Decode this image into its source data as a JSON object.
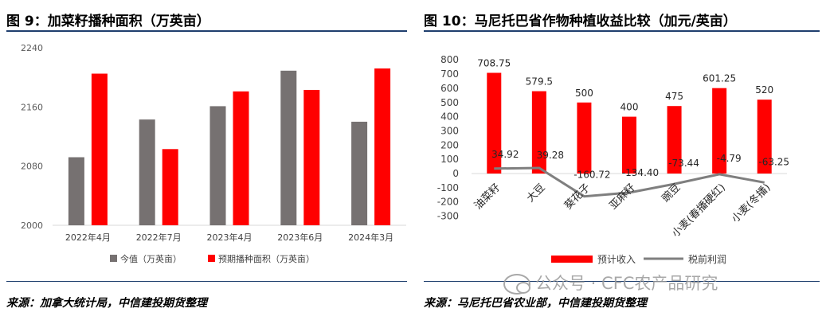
{
  "left_panel": {
    "title": "图 9：加菜籽播种面积（万英亩）",
    "source": "来源：加拿大统计局，中信建投期货整理"
  },
  "right_panel": {
    "title": "图 10：马尼托巴省作物种植收益比较（加元/英亩）",
    "source": "来源：马尼托巴省农业部，中信建投期货整理"
  },
  "watermark": {
    "text": "公众号 · CFC农产品研究"
  },
  "colors": {
    "grey": "#767171",
    "red": "#ff0000",
    "line": "#7f7f7f",
    "rule": "#1f3f6e"
  },
  "chart_data": [
    {
      "type": "bar",
      "categories": [
        "2022年4月",
        "2022年7月",
        "2023年4月",
        "2023年6月",
        "2024年3月"
      ],
      "series": [
        {
          "name": "今值（万英亩）",
          "values": [
            2092,
            2143,
            2161,
            2209,
            2140
          ]
        },
        {
          "name": "预期播种面积（万英亩）",
          "values": [
            2205,
            2103,
            2181,
            2183,
            2212
          ]
        }
      ],
      "yticks": [
        2000,
        2080,
        2160,
        2240
      ],
      "ylim": [
        2000,
        2240
      ],
      "grid": false,
      "legend": "bottom"
    },
    {
      "type": "bar",
      "categories": [
        "油菜籽",
        "大豆",
        "葵花子",
        "亚麻籽",
        "豌豆",
        "小麦(春播硬红)",
        "小麦(冬播)"
      ],
      "series": [
        {
          "name": "预计收入",
          "type": "bar",
          "values": [
            708.75,
            579.5,
            500,
            400,
            475,
            601.25,
            520
          ]
        },
        {
          "name": "税前利润",
          "type": "line",
          "values": [
            34.92,
            39.28,
            -160.72,
            -134.4,
            -73.44,
            -4.79,
            -63.25
          ]
        }
      ],
      "bar_labels": [
        "708.75",
        "579.5",
        "500",
        "400",
        "475",
        "601.25",
        "520"
      ],
      "line_labels": [
        "34.92",
        "39.28",
        "-160.72",
        "-134.40",
        "-73.44",
        "-4.79",
        "-63.25"
      ],
      "yticks": [
        -300,
        -200,
        -100,
        0,
        100,
        200,
        300,
        400,
        500,
        600,
        700,
        800
      ],
      "ytick_labels": [
        "-300",
        "-200",
        "-100",
        "0",
        "100",
        "200",
        "300",
        "400",
        "500",
        "600",
        "700",
        "800"
      ],
      "ylim": [
        -300,
        800
      ],
      "grid": false,
      "legend": "bottom"
    }
  ]
}
